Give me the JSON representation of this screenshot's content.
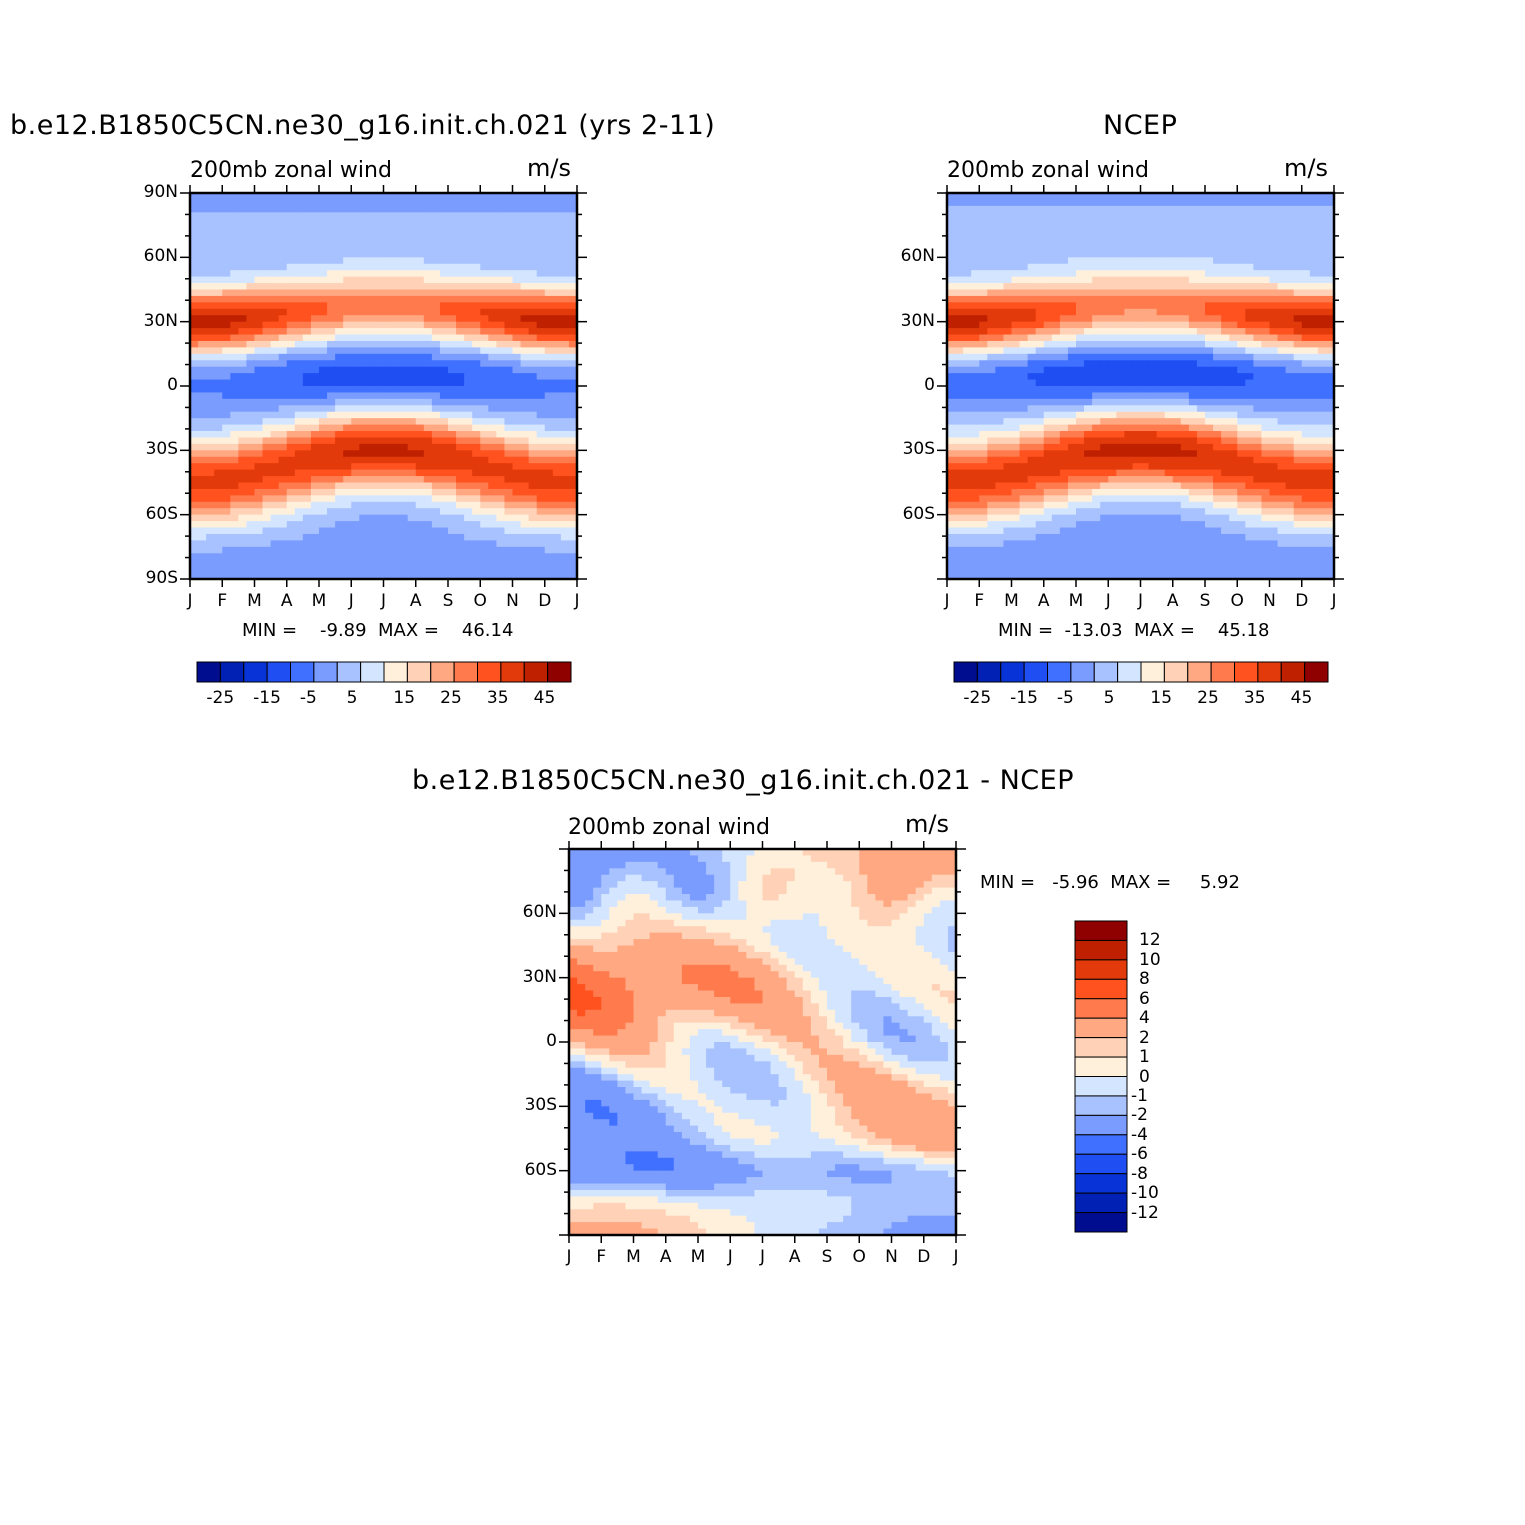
{
  "chart_data": [
    {
      "type": "heatmap",
      "title": "b.e12.B1850C5CN.ne30_g16.init.ch.021 (yrs 2-11)",
      "subtitle_left": "200mb  zonal  wind",
      "subtitle_right": "m/s",
      "x_ticks": [
        "J",
        "F",
        "M",
        "A",
        "M",
        "J",
        "J",
        "A",
        "S",
        "O",
        "N",
        "D",
        "J"
      ],
      "y_ticks": [
        "90N",
        "60N",
        "30N",
        "0",
        "30S",
        "60S",
        "90S"
      ],
      "ylim": [
        -90,
        90
      ],
      "min_max": "MIN =    -9.89  MAX =    46.14",
      "min": -9.89,
      "max": 46.14,
      "colorbar_ticks": [
        "-25",
        "-15",
        "-5",
        "5",
        "15",
        "25",
        "35",
        "45"
      ],
      "colorbar_levels": [
        -30,
        -25,
        -20,
        -15,
        -10,
        -5,
        0,
        5,
        10,
        15,
        20,
        25,
        30,
        35,
        40,
        45,
        50
      ]
    },
    {
      "type": "heatmap",
      "title": "NCEP",
      "subtitle_left": "200mb  zonal  wind",
      "subtitle_right": "m/s",
      "x_ticks": [
        "J",
        "F",
        "M",
        "A",
        "M",
        "J",
        "J",
        "A",
        "S",
        "O",
        "N",
        "D",
        "J"
      ],
      "y_ticks": [
        "60N",
        "30N",
        "0",
        "30S",
        "60S"
      ],
      "ylim": [
        -90,
        90
      ],
      "min_max": "MIN =  -13.03  MAX =    45.18",
      "min": -13.03,
      "max": 45.18,
      "colorbar_ticks": [
        "-25",
        "-15",
        "-5",
        "5",
        "15",
        "25",
        "35",
        "45"
      ],
      "colorbar_levels": [
        -30,
        -25,
        -20,
        -15,
        -10,
        -5,
        0,
        5,
        10,
        15,
        20,
        25,
        30,
        35,
        40,
        45,
        50
      ]
    },
    {
      "type": "heatmap",
      "title": "b.e12.B1850C5CN.ne30_g16.init.ch.021 - NCEP",
      "subtitle_left": "200mb  zonal  wind",
      "subtitle_right": "m/s",
      "x_ticks": [
        "J",
        "F",
        "M",
        "A",
        "M",
        "J",
        "J",
        "A",
        "S",
        "O",
        "N",
        "D",
        "J"
      ],
      "y_ticks": [
        "60N",
        "30N",
        "0",
        "30S",
        "60S"
      ],
      "ylim": [
        -90,
        90
      ],
      "min_max": "MIN =   -5.96  MAX =     5.92",
      "min": -5.96,
      "max": 5.92,
      "colorbar_ticks": [
        "12",
        "10",
        "8",
        "6",
        "4",
        "2",
        "1",
        "0",
        "-1",
        "-2",
        "-4",
        "-6",
        "-8",
        "-10",
        "-12"
      ]
    }
  ],
  "colors": {
    "palette": [
      "#000d8f",
      "#0021b3",
      "#0833d6",
      "#1f4ff2",
      "#4070ff",
      "#7a9cff",
      "#a8c2ff",
      "#d4e6ff",
      "#fff0dc",
      "#ffd2b8",
      "#ffa882",
      "#ff7a4c",
      "#ff521f",
      "#e23a0a",
      "#bf2000",
      "#8f0000"
    ]
  }
}
